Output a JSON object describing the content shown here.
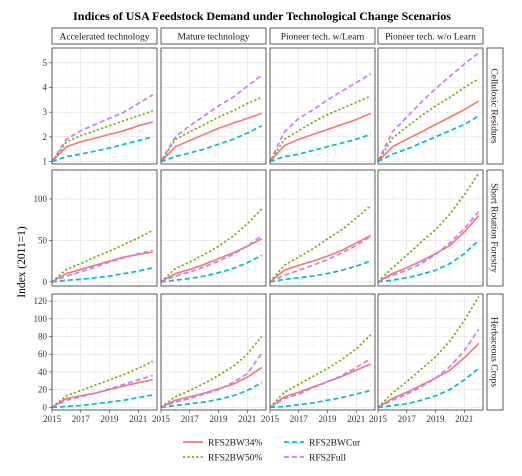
{
  "chart_data": {
    "type": "line",
    "title": "Indices of USA Feedstock Demand under Technological Change Scenarios",
    "ylabel": "Index (2011=1)",
    "xlabel": "",
    "x": [
      2015,
      2016,
      2017,
      2018,
      2019,
      2020,
      2021,
      2022
    ],
    "x_ticks": [
      "2015",
      "2017",
      "2019",
      "2021"
    ],
    "columns": [
      "Accelerated technology",
      "Mature technology",
      "Pioneer tech. w/Learn",
      "Pioneer tech. w/o Learn"
    ],
    "rows": [
      "Cellulosic Residues",
      "Short Rotation Forestry",
      "Herbaceous Crops"
    ],
    "row_ylim": [
      [
        0.9,
        5.6
      ],
      [
        -5,
        135
      ],
      [
        -3,
        128
      ]
    ],
    "row_yticks": [
      [
        "1",
        "2",
        "3",
        "4",
        "5"
      ],
      [
        "0",
        "50",
        "100"
      ],
      [
        "0",
        "20",
        "40",
        "60",
        "80",
        "100",
        "120"
      ]
    ],
    "series_style": {
      "RFS2BW34%": {
        "color": "#f8766d",
        "dash": "solid"
      },
      "RFS2BW50%": {
        "color": "#7cae00",
        "dash": "dotted"
      },
      "RFS2BWCur": {
        "color": "#00bfc4",
        "dash": "dashed"
      },
      "RFS2Full": {
        "color": "#c77cff",
        "dash": "dashed"
      }
    },
    "legend": [
      "RFS2BW34%",
      "RFS2BW50%",
      "RFS2BWCur",
      "RFS2Full"
    ],
    "legend_position": "bottom",
    "panels": [
      [
        {
          "RFS2BW34%": [
            1.0,
            1.6,
            1.8,
            1.95,
            2.1,
            2.25,
            2.45,
            2.6
          ],
          "RFS2BW50%": [
            1.0,
            1.8,
            2.05,
            2.25,
            2.45,
            2.65,
            2.85,
            3.05
          ],
          "RFS2BWCur": [
            1.0,
            1.2,
            1.3,
            1.42,
            1.55,
            1.7,
            1.85,
            2.0
          ],
          "RFS2Full": [
            1.0,
            1.9,
            2.25,
            2.5,
            2.75,
            3.0,
            3.35,
            3.7
          ]
        },
        {
          "RFS2BW34%": [
            1.0,
            1.6,
            1.85,
            2.1,
            2.35,
            2.55,
            2.75,
            2.95
          ],
          "RFS2BW50%": [
            1.0,
            1.9,
            2.2,
            2.5,
            2.8,
            3.05,
            3.35,
            3.6
          ],
          "RFS2BWCur": [
            1.0,
            1.2,
            1.35,
            1.5,
            1.7,
            1.9,
            2.15,
            2.45
          ],
          "RFS2Full": [
            1.0,
            2.0,
            2.45,
            2.85,
            3.25,
            3.6,
            4.05,
            4.5
          ]
        },
        {
          "RFS2BW34%": [
            1.0,
            1.65,
            1.9,
            2.1,
            2.3,
            2.5,
            2.7,
            2.95
          ],
          "RFS2BW50%": [
            1.0,
            1.9,
            2.25,
            2.6,
            2.9,
            3.15,
            3.4,
            3.65
          ],
          "RFS2BWCur": [
            1.0,
            1.2,
            1.3,
            1.45,
            1.6,
            1.75,
            1.9,
            2.1
          ],
          "RFS2Full": [
            1.0,
            2.2,
            2.75,
            3.1,
            3.5,
            3.85,
            4.2,
            4.55
          ]
        },
        {
          "RFS2BW34%": [
            1.0,
            1.6,
            1.9,
            2.2,
            2.5,
            2.8,
            3.1,
            3.45
          ],
          "RFS2BW50%": [
            1.0,
            1.95,
            2.4,
            2.85,
            3.25,
            3.6,
            4.0,
            4.35
          ],
          "RFS2BWCur": [
            1.0,
            1.3,
            1.5,
            1.75,
            2.0,
            2.25,
            2.5,
            2.85
          ],
          "RFS2Full": [
            1.0,
            2.2,
            2.8,
            3.4,
            3.95,
            4.45,
            4.95,
            5.4
          ]
        }
      ],
      [
        {
          "RFS2BW34%": [
            0,
            10,
            15,
            20,
            25,
            30,
            33,
            36
          ],
          "RFS2BW50%": [
            0,
            15,
            22,
            30,
            37,
            45,
            53,
            62
          ],
          "RFS2BWCur": [
            0,
            2,
            3,
            5,
            7,
            10,
            13,
            17
          ],
          "RFS2Full": [
            0,
            7,
            12,
            18,
            24,
            29,
            34,
            38
          ]
        },
        {
          "RFS2BW34%": [
            0,
            10,
            15,
            21,
            28,
            35,
            43,
            52
          ],
          "RFS2BW50%": [
            0,
            16,
            24,
            33,
            43,
            55,
            70,
            88
          ],
          "RFS2BWCur": [
            0,
            2,
            4,
            7,
            11,
            16,
            23,
            32
          ],
          "RFS2Full": [
            0,
            7,
            12,
            18,
            25,
            33,
            43,
            56
          ]
        },
        {
          "RFS2BW34%": [
            0,
            14,
            20,
            25,
            31,
            38,
            47,
            56
          ],
          "RFS2BW50%": [
            0,
            20,
            30,
            40,
            52,
            63,
            77,
            92
          ],
          "RFS2BWCur": [
            0,
            3,
            5,
            7,
            10,
            14,
            19,
            25
          ],
          "RFS2Full": [
            0,
            8,
            14,
            20,
            27,
            35,
            44,
            55
          ]
        },
        {
          "RFS2BW34%": [
            0,
            10,
            17,
            25,
            34,
            44,
            60,
            80
          ],
          "RFS2BW50%": [
            0,
            17,
            32,
            48,
            63,
            82,
            105,
            131
          ],
          "RFS2BWCur": [
            0,
            2,
            5,
            9,
            14,
            22,
            34,
            50
          ],
          "RFS2Full": [
            0,
            8,
            14,
            22,
            33,
            47,
            64,
            85
          ]
        }
      ],
      [
        {
          "RFS2BW34%": [
            0,
            10,
            13,
            16,
            20,
            24,
            28,
            31
          ],
          "RFS2BW50%": [
            0,
            13,
            19,
            25,
            31,
            37,
            44,
            52
          ],
          "RFS2BWCur": [
            0,
            1,
            2,
            4,
            6,
            8,
            11,
            14
          ],
          "RFS2Full": [
            0,
            8,
            12,
            16,
            21,
            26,
            31,
            36
          ]
        },
        {
          "RFS2BW34%": [
            0,
            8,
            12,
            16,
            21,
            26,
            34,
            45
          ],
          "RFS2BW50%": [
            0,
            12,
            19,
            27,
            36,
            46,
            60,
            80
          ],
          "RFS2BWCur": [
            0,
            2,
            4,
            6,
            9,
            13,
            19,
            28
          ],
          "RFS2Full": [
            0,
            6,
            10,
            15,
            20,
            28,
            38,
            61
          ]
        },
        {
          "RFS2BW34%": [
            0,
            12,
            17,
            23,
            29,
            35,
            42,
            49
          ],
          "RFS2BW50%": [
            0,
            17,
            26,
            35,
            44,
            54,
            66,
            82
          ],
          "RFS2BWCur": [
            0,
            1,
            3,
            5,
            8,
            11,
            15,
            19
          ],
          "RFS2Full": [
            0,
            10,
            15,
            22,
            29,
            36,
            45,
            55
          ]
        },
        {
          "RFS2BW34%": [
            0,
            10,
            17,
            25,
            33,
            42,
            56,
            72
          ],
          "RFS2BW50%": [
            0,
            16,
            29,
            43,
            57,
            75,
            98,
            125
          ],
          "RFS2BWCur": [
            0,
            2,
            4,
            8,
            13,
            20,
            31,
            44
          ],
          "RFS2Full": [
            0,
            8,
            15,
            23,
            33,
            46,
            64,
            88
          ]
        }
      ]
    ]
  }
}
